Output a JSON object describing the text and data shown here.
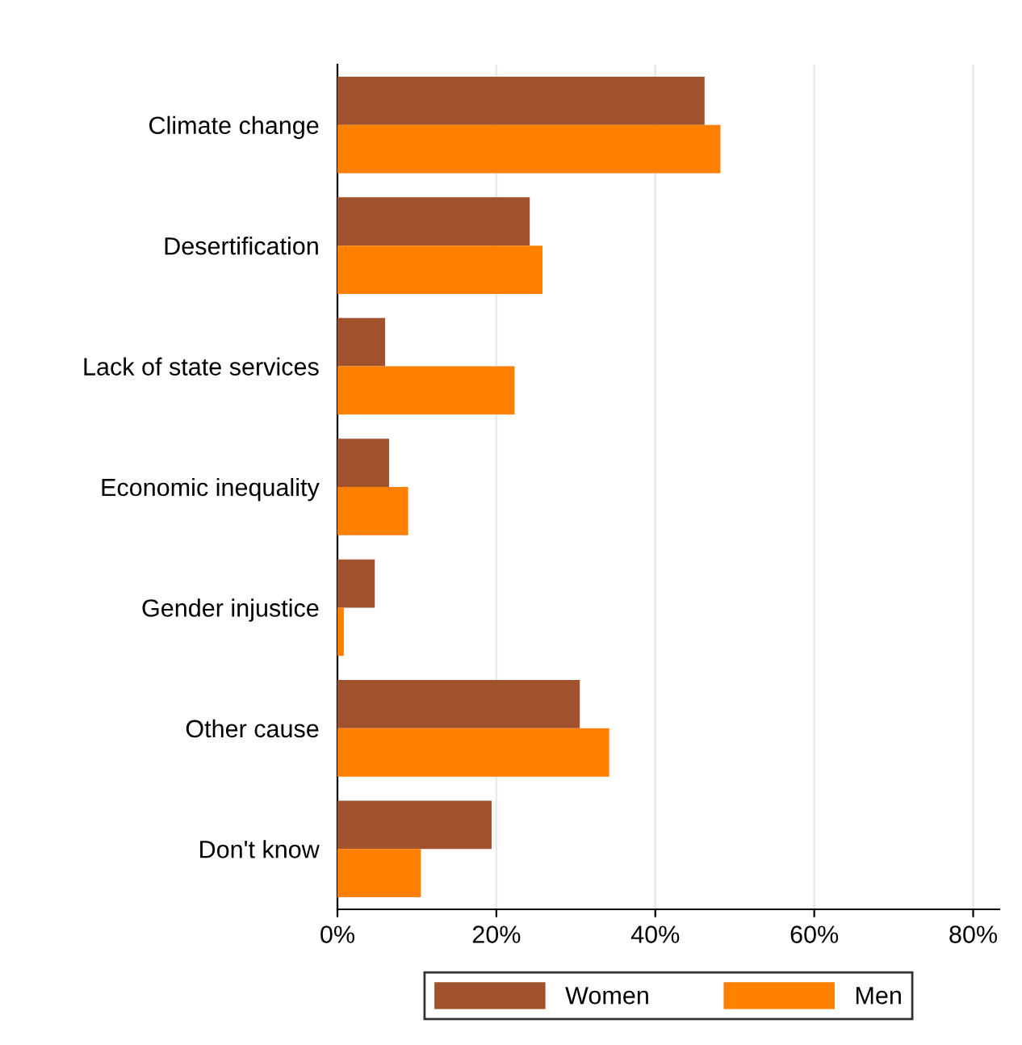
{
  "chart_data": {
    "type": "bar",
    "orientation": "horizontal",
    "categories": [
      "Climate change",
      "Desertification",
      "Lack of state services",
      "Economic inequality",
      "Gender injustice",
      "Other cause",
      "Don't know"
    ],
    "series": [
      {
        "name": "Women",
        "color": "#a0522d",
        "values": [
          46.2,
          24.2,
          6.0,
          6.5,
          4.7,
          30.5,
          19.4
        ]
      },
      {
        "name": "Men",
        "color": "#ff7f00",
        "values": [
          48.2,
          25.8,
          22.3,
          8.9,
          0.8,
          34.2,
          10.5
        ]
      }
    ],
    "xlim": [
      0,
      83.3
    ],
    "xticks": [
      {
        "value": 0,
        "label": "0%"
      },
      {
        "value": 20,
        "label": "20%"
      },
      {
        "value": 40,
        "label": "40%"
      },
      {
        "value": 60,
        "label": "60%"
      },
      {
        "value": 80,
        "label": "80%"
      }
    ],
    "grid": "x",
    "legend": "bottom"
  }
}
